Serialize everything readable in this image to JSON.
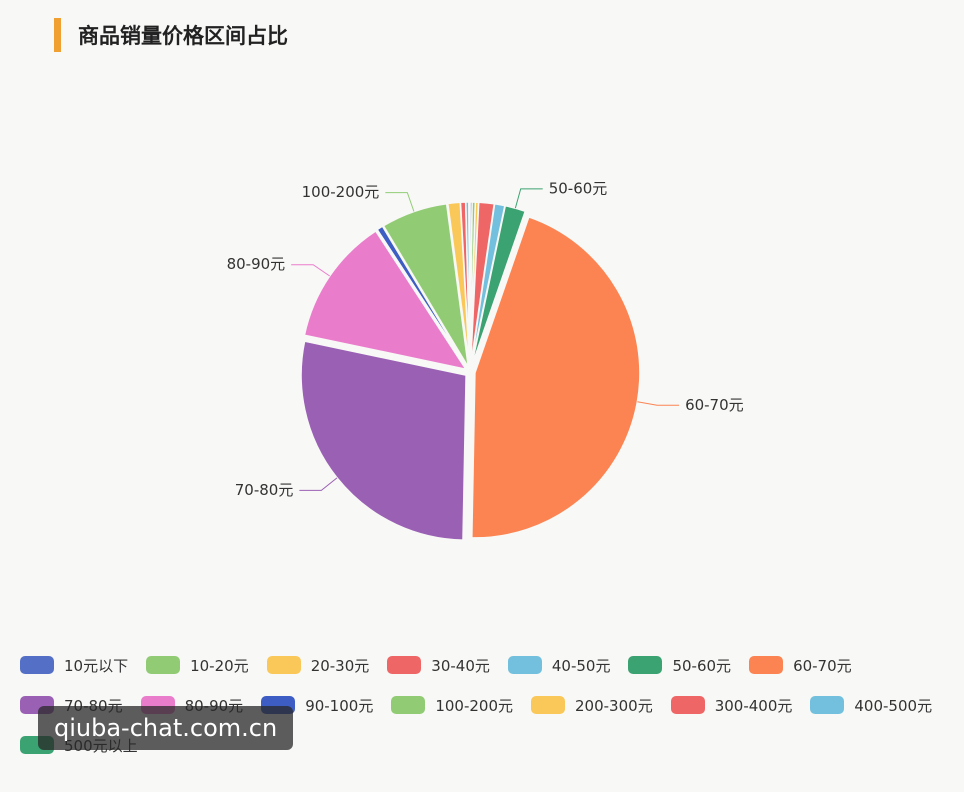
{
  "chart_data": {
    "type": "pie",
    "title": "商品销量价格区间占比",
    "categories": [
      "10元以下",
      "10-20元",
      "20-30元",
      "30-40元",
      "40-50元",
      "50-60元",
      "60-70元",
      "70-80元",
      "80-90元",
      "90-100元",
      "100-200元",
      "200-300元",
      "300-400元",
      "400-500元",
      "500元以上"
    ],
    "values": [
      0.2,
      0.3,
      0.3,
      1.5,
      1,
      2,
      45,
      28,
      12.5,
      0.6,
      6.5,
      1.2,
      0.5,
      0.3,
      0.1
    ],
    "colors": [
      "#5470c6",
      "#91cc75",
      "#fac858",
      "#ee6666",
      "#73c0de",
      "#3ba272",
      "#fc8452",
      "#9a60b4",
      "#ea7ccc",
      "#3d5cc4",
      "#91cc75",
      "#fac858",
      "#ee6666",
      "#73c0de",
      "#3ba272"
    ],
    "legend": "bottom-left"
  },
  "watermark": "qiuba-chat.com.cn"
}
